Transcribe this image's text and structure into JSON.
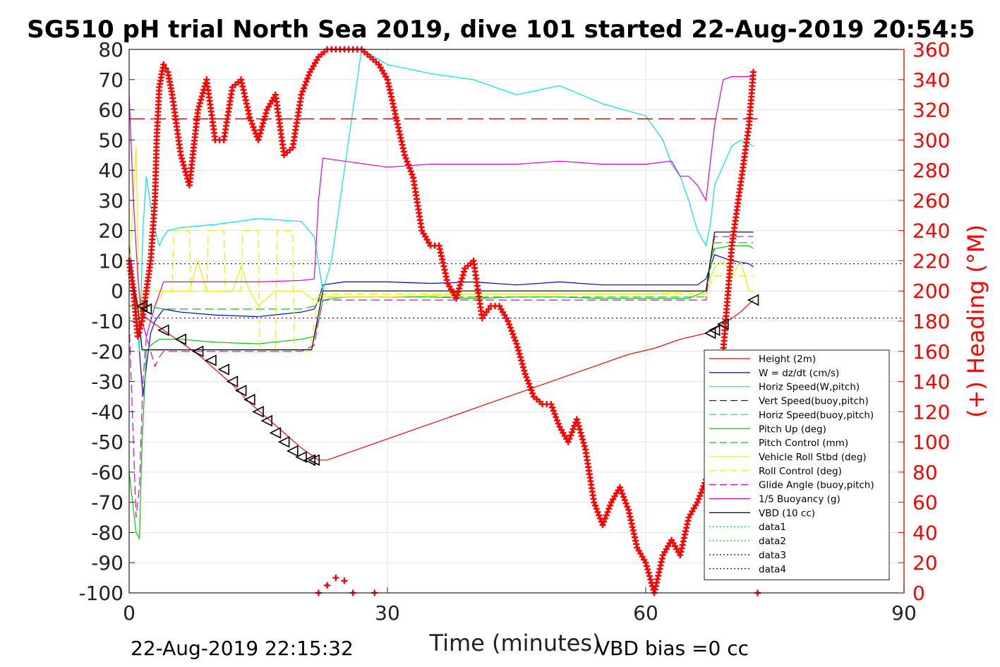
{
  "chart_data": {
    "type": "line",
    "title": "SG510 pH trial North Sea 2019, dive 101 started 22-Aug-2019 20:54:5",
    "xlabel": "Time (minutes)",
    "ylabel_right": "(+) Heading (°M)",
    "footer_left": "22-Aug-2019 22:15:32",
    "footer_right": "VBD bias =0 cc",
    "xlim": [
      0,
      90
    ],
    "ylim": [
      -100,
      80
    ],
    "ylim_right": [
      0,
      360
    ],
    "xticks": [
      "0",
      "30",
      "60",
      "90"
    ],
    "yticks": [
      "80",
      "70",
      "60",
      "50",
      "40",
      "30",
      "20",
      "10",
      "0",
      "-10",
      "-20",
      "-30",
      "-40",
      "-50",
      "-60",
      "-70",
      "-80",
      "-90",
      "-100"
    ],
    "yticks_right": [
      "360",
      "340",
      "320",
      "300",
      "280",
      "260",
      "240",
      "220",
      "200",
      "180",
      "160",
      "140",
      "120",
      "100",
      "80",
      "60",
      "40",
      "20",
      "0"
    ],
    "grid": true,
    "legend_position": "bottom-right",
    "colors": {
      "red": "#ff0000",
      "blue": "#0000cc",
      "cyan": "#00e5e5",
      "green": "#00cc00",
      "yellow": "#eeee00",
      "magenta": "#dd00dd",
      "black": "#000000"
    },
    "series": [
      {
        "name": "Height (2m)",
        "color": "#ff0000",
        "style": "solid",
        "x": [
          0,
          1,
          2,
          4,
          6,
          8,
          10,
          12,
          14,
          16,
          18,
          20,
          21.5,
          22,
          23,
          25,
          28,
          31,
          34,
          37,
          40,
          43,
          46,
          49,
          52,
          55,
          58,
          61,
          64,
          67,
          69,
          71,
          72.5
        ],
        "y": [
          10,
          -6,
          -9,
          -13,
          -17,
          -21,
          -26,
          -31,
          -37,
          -42,
          -47,
          -52,
          -55,
          -56,
          -56,
          -54,
          -51,
          -48,
          -45,
          -42,
          -39,
          -36,
          -33,
          -30,
          -27,
          -24,
          -21,
          -19,
          -16,
          -14,
          -11,
          -7,
          -3
        ]
      },
      {
        "name": "W = dz/dt (cm/s)",
        "color": "#0000cc",
        "style": "solid",
        "x": [
          0,
          0.8,
          1.2,
          1.6,
          2,
          2.5,
          3,
          3.5,
          4,
          6,
          10,
          15,
          20,
          21.5,
          22,
          22.5,
          25,
          30,
          35,
          40,
          45,
          50,
          55,
          60,
          65,
          66,
          67,
          67.5,
          68,
          70,
          72,
          72.5
        ],
        "y": [
          15,
          -5,
          -20,
          -35,
          -25,
          -14,
          -10,
          -8,
          -6,
          -7,
          -8,
          -8.5,
          -7,
          -6,
          -3,
          2,
          3,
          3,
          2.5,
          3,
          2,
          3,
          2,
          2,
          2,
          2,
          4,
          8,
          12,
          10,
          9,
          8
        ]
      },
      {
        "name": "Horiz Speed(W,pitch)",
        "color": "#00e5e5",
        "style": "solid",
        "x": [
          0,
          0.8,
          1.2,
          1.6,
          2,
          2.5,
          3,
          3.5,
          4,
          4.5,
          6,
          10,
          15,
          20,
          21.5,
          22.5,
          23.5,
          25,
          27,
          30,
          35,
          40,
          45,
          50,
          55,
          60,
          62,
          63,
          64,
          65,
          66,
          67,
          67.5,
          68,
          70,
          71,
          72.5
        ],
        "y": [
          10,
          -5,
          -20,
          20,
          38,
          28,
          20,
          15,
          18,
          20,
          21,
          22,
          24,
          23,
          18,
          0,
          10,
          40,
          80,
          75,
          72,
          70,
          65,
          68,
          62,
          58,
          50,
          42,
          38,
          30,
          20,
          15,
          22,
          35,
          48,
          50,
          48
        ]
      },
      {
        "name": "Vert Speed(buoy,pitch)",
        "color": "#0000cc",
        "style": "dashed",
        "x": [],
        "y": []
      },
      {
        "name": "Horiz Speed(buoy,pitch)",
        "color": "#00e5e5",
        "style": "dashed",
        "x": [],
        "y": []
      },
      {
        "name": "Pitch Up (deg)",
        "color": "#00cc00",
        "style": "solid",
        "x": [
          0,
          0.8,
          1.2,
          1.5,
          2,
          2.5,
          3,
          3.5,
          4,
          6,
          10,
          15,
          20,
          21.5,
          22,
          22.5,
          25,
          30,
          35,
          40,
          45,
          50,
          55,
          60,
          65,
          67,
          67.5,
          68,
          70,
          72,
          72.5
        ],
        "y": [
          -60,
          -80,
          -82,
          -50,
          -20,
          -18,
          -17,
          -16,
          -16,
          -16,
          -17,
          -17.5,
          -16,
          -15,
          -10,
          -3,
          -2,
          -2,
          -2,
          -2.5,
          -2,
          -2,
          -2.5,
          -2.5,
          -2.5,
          0,
          10,
          14,
          15,
          15,
          14
        ]
      },
      {
        "name": "Pitch Control (mm)",
        "color": "#00cc00",
        "style": "dashed",
        "x": [
          0,
          2,
          4,
          10,
          15,
          20,
          21.5,
          22.5,
          30,
          40,
          50,
          60,
          67,
          68,
          72.5
        ],
        "y": [
          -5,
          -5,
          -6,
          -6,
          -6,
          -6,
          -5,
          -2,
          -2,
          -2,
          -2,
          -2,
          -2,
          16,
          16
        ]
      },
      {
        "name": "Vehicle Roll Stbd (deg)",
        "color": "#eeee00",
        "style": "solid",
        "x": [
          0,
          0.8,
          1.2,
          1.6,
          2,
          3,
          4,
          5,
          7,
          8,
          9,
          10,
          12,
          13,
          14,
          15,
          17,
          18,
          20,
          21.5,
          22,
          30,
          40,
          50,
          60,
          67,
          68,
          69,
          70,
          71,
          72,
          72.5
        ],
        "y": [
          5,
          48,
          -10,
          0,
          -5,
          -5,
          0,
          0,
          0,
          10,
          0,
          0,
          0,
          8,
          0,
          -5,
          0,
          0,
          0,
          -3,
          -2,
          -2,
          -1,
          -1,
          -1,
          0,
          8,
          10,
          5,
          10,
          0,
          0
        ]
      },
      {
        "name": "Roll Control (deg)",
        "color": "#eeee00",
        "style": "dashed",
        "x": [
          0,
          2,
          4,
          5,
          5.2,
          7,
          7.2,
          9,
          9.2,
          11,
          11.2,
          13,
          13.2,
          15,
          15.2,
          17,
          17.2,
          19,
          19.2,
          21,
          22,
          30,
          40,
          50,
          60,
          67,
          68,
          72.5
        ],
        "y": [
          0,
          0,
          0,
          0,
          20,
          20,
          0,
          0,
          20,
          20,
          0,
          0,
          20,
          20,
          -20,
          -20,
          20,
          20,
          -20,
          -20,
          -1,
          -1,
          -1,
          -1,
          -1,
          -1,
          5,
          5
        ]
      },
      {
        "name": "Glide Angle (buoy,pitch)",
        "color": "#dd00dd",
        "style": "dashed",
        "x": [
          0,
          0.8,
          1.2,
          1.6,
          2,
          2.5,
          3,
          3.5,
          4,
          6,
          10,
          15,
          20,
          21.5,
          22,
          22.5,
          30,
          40,
          50,
          60,
          67,
          67.5,
          68,
          70,
          72.5
        ],
        "y": [
          -10,
          -75,
          -65,
          -30,
          -15,
          -20,
          -25,
          -22,
          -20,
          -20,
          -20,
          -20,
          -20,
          -18,
          -10,
          -3,
          -3,
          -3,
          -3,
          -3,
          -3,
          10,
          18,
          18,
          18
        ]
      },
      {
        "name": "1/5 Buoyancy (g)",
        "color": "#dd00dd",
        "style": "solid",
        "x": [
          0,
          0.5,
          1,
          1.5,
          2,
          3,
          4,
          6,
          10,
          15,
          20,
          21.5,
          22,
          22.5,
          25,
          30,
          35,
          40,
          45,
          50,
          55,
          60,
          63,
          64,
          65,
          66,
          67,
          68,
          69,
          70,
          72.5
        ],
        "y": [
          65,
          30,
          5,
          -10,
          -15,
          -5,
          3,
          3,
          3,
          3,
          3.5,
          4,
          30,
          44,
          43,
          41,
          42,
          42,
          42,
          43,
          42,
          42,
          43,
          38,
          38,
          35,
          30,
          55,
          70,
          71,
          71
        ]
      },
      {
        "name": "VBD (10 cc)",
        "color": "#000000",
        "style": "solid",
        "x": [
          0,
          1,
          1.5,
          4,
          10,
          15,
          20,
          21.2,
          22.5,
          30,
          40,
          50,
          60,
          65,
          67,
          68,
          72.5
        ],
        "y": [
          10,
          -5,
          -19.5,
          -19.5,
          -19.5,
          -19.5,
          -19.5,
          -19.5,
          0,
          0,
          0,
          0,
          0,
          0,
          0,
          19.5,
          19.5
        ]
      },
      {
        "name": "data1",
        "color": "#00cc00",
        "style": "dotted",
        "x": [],
        "y": []
      },
      {
        "name": "data2",
        "color": "#00cc00",
        "style": "dotted",
        "x": [],
        "y": []
      },
      {
        "name": "data3",
        "color": "#0000cc",
        "style": "dotted",
        "x": [
          0,
          90
        ],
        "y": [
          9,
          9
        ]
      },
      {
        "name": "data4",
        "color": "#0000cc",
        "style": "dotted",
        "x": [
          0,
          90
        ],
        "y": [
          -9,
          -9
        ]
      }
    ],
    "reference_line": {
      "color": "#aa0000",
      "style": "dashed",
      "axis": "right",
      "y": 314,
      "x": [
        0,
        73
      ]
    },
    "heading_series": {
      "axis": "right",
      "color": "#ff0000",
      "marker": "+",
      "x": [
        0,
        0.5,
        1,
        1.5,
        2,
        2.5,
        3,
        3.2,
        3.5,
        4,
        4.5,
        5,
        6,
        7,
        8,
        9,
        10,
        11,
        12,
        13,
        14,
        15,
        16,
        17,
        18,
        19,
        20,
        21,
        22,
        23,
        24,
        25,
        26,
        27,
        28,
        29,
        30,
        31,
        32,
        33,
        34,
        35,
        36,
        37,
        38,
        39,
        40,
        41,
        42,
        43,
        44,
        45,
        46,
        47,
        48,
        49,
        50,
        51,
        52,
        53,
        54,
        55,
        56,
        57,
        58,
        59,
        60,
        61,
        62,
        63,
        64,
        65,
        66,
        67,
        68,
        69,
        70,
        71,
        72,
        72.5
      ],
      "y": [
        220,
        200,
        170,
        180,
        200,
        220,
        260,
        300,
        335,
        350,
        345,
        330,
        290,
        270,
        320,
        340,
        300,
        300,
        335,
        340,
        315,
        300,
        320,
        330,
        290,
        295,
        330,
        345,
        355,
        360,
        360,
        360,
        360,
        360,
        355,
        350,
        340,
        315,
        290,
        275,
        240,
        230,
        230,
        205,
        195,
        215,
        220,
        182,
        190,
        190,
        180,
        165,
        145,
        130,
        125,
        125,
        110,
        100,
        115,
        95,
        60,
        45,
        60,
        70,
        55,
        30,
        20,
        0,
        25,
        35,
        25,
        50,
        60,
        75,
        70,
        160,
        230,
        270,
        310,
        345
      ]
    },
    "heading_low_points": {
      "x": [
        22,
        23,
        24,
        25,
        26,
        28.5,
        73
      ],
      "y": [
        0,
        5,
        10,
        8,
        0,
        0,
        0
      ]
    },
    "triangle_markers": {
      "x": [
        1.5,
        2,
        4,
        6,
        8,
        9.5,
        11,
        12,
        13,
        14,
        15,
        16,
        17,
        18,
        19,
        20,
        21,
        21.5,
        67.5,
        68,
        69,
        72.5
      ],
      "y": [
        -5,
        -6,
        -13,
        -16,
        -20,
        -23,
        -26,
        -30,
        -33,
        -36,
        -40,
        -43,
        -47,
        -50,
        -53,
        -55,
        -56,
        -56,
        -14,
        -13,
        -11,
        -3
      ]
    }
  }
}
